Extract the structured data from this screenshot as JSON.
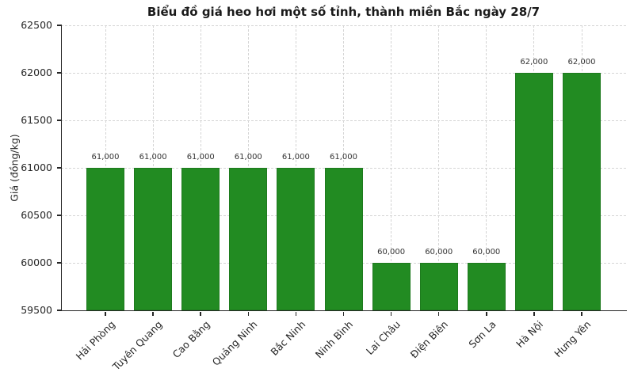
{
  "chart_data": {
    "type": "bar",
    "title": "Biểu đồ giá heo hơi một số tỉnh, thành miền Bắc ngày 28/7",
    "xlabel": "",
    "ylabel": "Giá (đồng/kg)",
    "categories": [
      "Hải Phòng",
      "Tuyên Quang",
      "Cao Bằng",
      "Quảng Ninh",
      "Bắc Ninh",
      "Ninh Bình",
      "Lai Châu",
      "Điện Biên",
      "Sơn La",
      "Hà Nội",
      "Hưng Yên"
    ],
    "values": [
      61000,
      61000,
      61000,
      61000,
      61000,
      61000,
      60000,
      60000,
      60000,
      62000,
      62000
    ],
    "value_labels": [
      "61,000",
      "61,000",
      "61,000",
      "61,000",
      "61,000",
      "61,000",
      "60,000",
      "60,000",
      "60,000",
      "62,000",
      "62,000"
    ],
    "ylim": [
      59500,
      62500
    ],
    "yticks": [
      59500,
      60000,
      60500,
      61000,
      61500,
      62000,
      62500
    ],
    "grid": "dashed-both-axes",
    "legend_position": "none",
    "colors": {
      "bar_fill": "#228B22",
      "bar_edge": "#1e7a1e",
      "grid": "#d4d4d4",
      "axis": "#262626",
      "text": "#262626",
      "value_label": "#333333",
      "background": "#ffffff"
    }
  }
}
